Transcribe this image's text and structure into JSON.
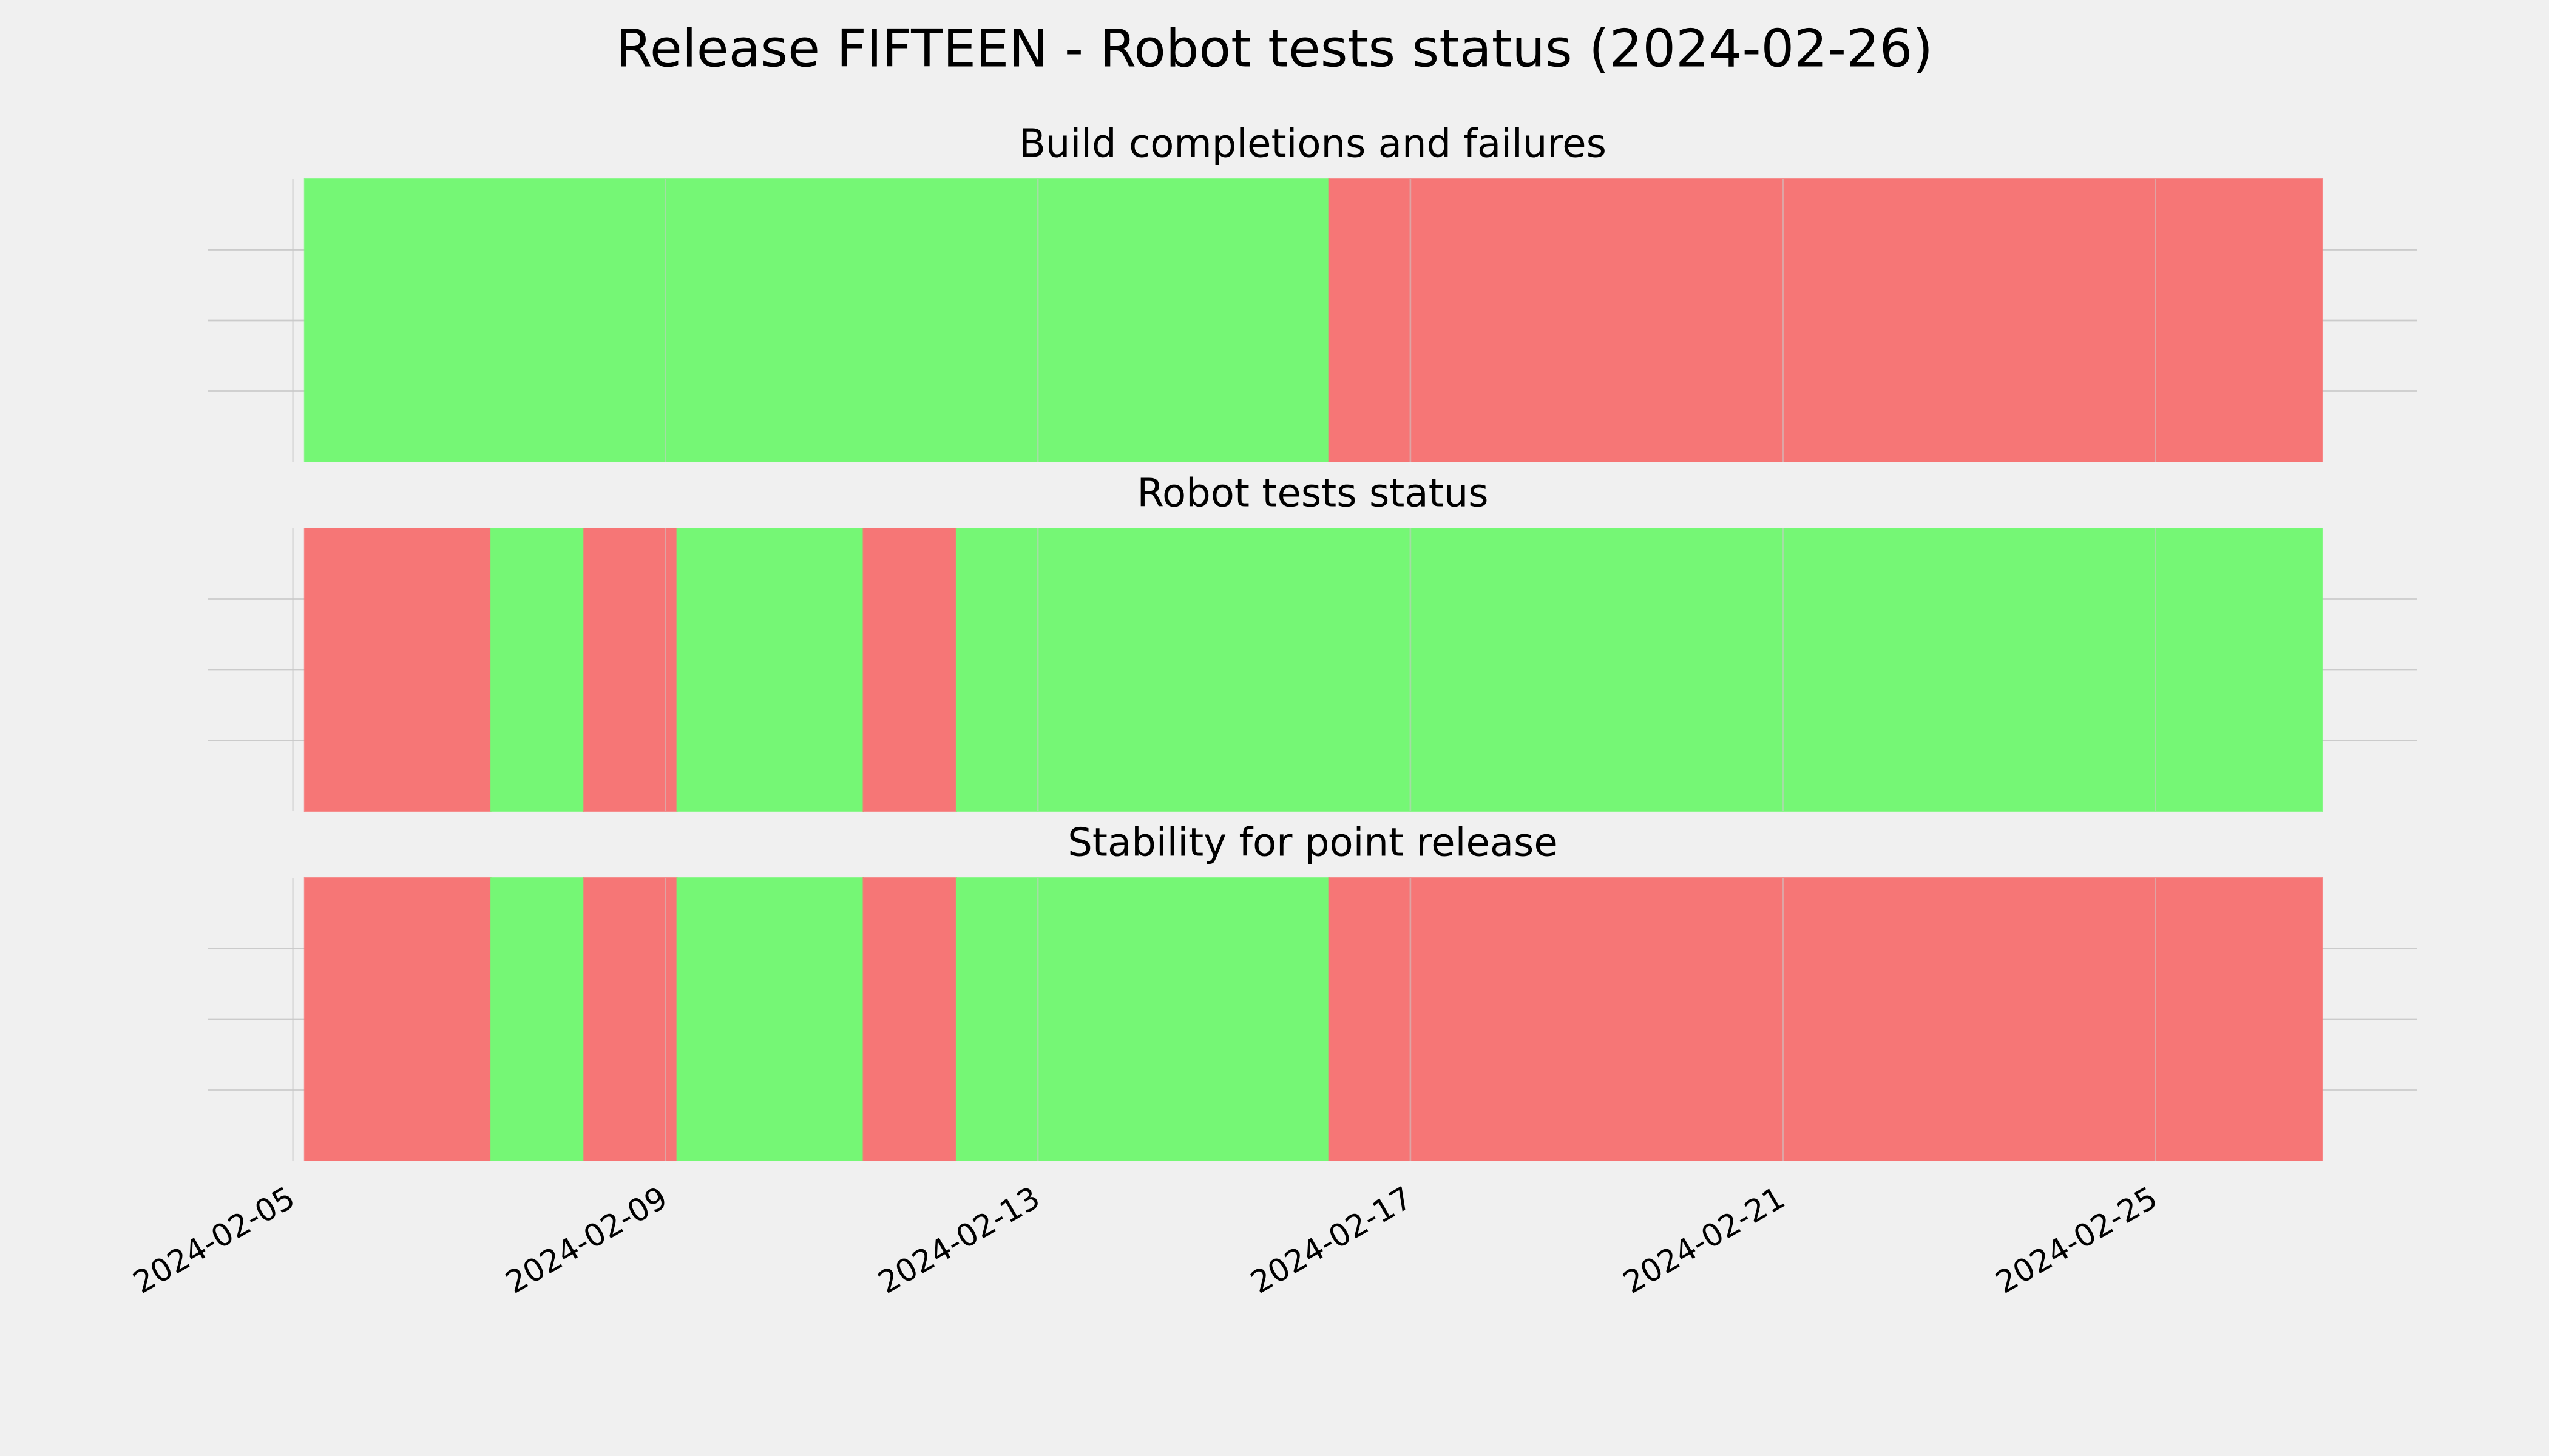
{
  "title": "Release FIFTEEN - Robot tests status (2024-02-26)",
  "x_axis": {
    "xlim": [
      "2024-02-04T02:10Z",
      "2024-02-27T19:30Z"
    ],
    "xticks": [
      "2024-02-05",
      "2024-02-09",
      "2024-02-13",
      "2024-02-17",
      "2024-02-21",
      "2024-02-25"
    ]
  },
  "chart_data": [
    {
      "type": "span",
      "title": "Build completions and failures",
      "ylim": [
        0,
        1
      ],
      "yticks": [
        0.25,
        0.5,
        0.75
      ],
      "ytick_labels": false,
      "grid": true,
      "spans": [
        {
          "start": "2024-02-05T03:00Z",
          "end": "2024-02-16T03:00Z",
          "color": "#75f775"
        },
        {
          "start": "2024-02-16T03:00Z",
          "end": "2024-02-26T19:00Z",
          "color": "#f67676"
        }
      ]
    },
    {
      "type": "span",
      "title": "Robot tests status",
      "ylim": [
        0,
        1
      ],
      "yticks": [
        0.25,
        0.5,
        0.75
      ],
      "ytick_labels": false,
      "grid": true,
      "spans": [
        {
          "start": "2024-02-05T03:00Z",
          "end": "2024-02-07T03:00Z",
          "color": "#f67676"
        },
        {
          "start": "2024-02-07T03:00Z",
          "end": "2024-02-08T03:00Z",
          "color": "#75f775"
        },
        {
          "start": "2024-02-08T03:00Z",
          "end": "2024-02-09T03:00Z",
          "color": "#f67676"
        },
        {
          "start": "2024-02-09T03:00Z",
          "end": "2024-02-11T03:00Z",
          "color": "#75f775"
        },
        {
          "start": "2024-02-11T03:00Z",
          "end": "2024-02-12T03:00Z",
          "color": "#f67676"
        },
        {
          "start": "2024-02-12T03:00Z",
          "end": "2024-02-26T19:00Z",
          "color": "#75f775"
        }
      ]
    },
    {
      "type": "span",
      "title": "Stability for point release",
      "ylim": [
        0,
        1
      ],
      "yticks": [
        0.25,
        0.5,
        0.75
      ],
      "ytick_labels": false,
      "grid": true,
      "spans": [
        {
          "start": "2024-02-05T03:00Z",
          "end": "2024-02-07T03:00Z",
          "color": "#f67676"
        },
        {
          "start": "2024-02-07T03:00Z",
          "end": "2024-02-08T03:00Z",
          "color": "#75f775"
        },
        {
          "start": "2024-02-08T03:00Z",
          "end": "2024-02-09T03:00Z",
          "color": "#f67676"
        },
        {
          "start": "2024-02-09T03:00Z",
          "end": "2024-02-11T03:00Z",
          "color": "#75f775"
        },
        {
          "start": "2024-02-11T03:00Z",
          "end": "2024-02-12T03:00Z",
          "color": "#f67676"
        },
        {
          "start": "2024-02-12T03:00Z",
          "end": "2024-02-16T03:00Z",
          "color": "#75f775"
        },
        {
          "start": "2024-02-16T03:00Z",
          "end": "2024-02-26T19:00Z",
          "color": "#f67676"
        }
      ]
    }
  ]
}
